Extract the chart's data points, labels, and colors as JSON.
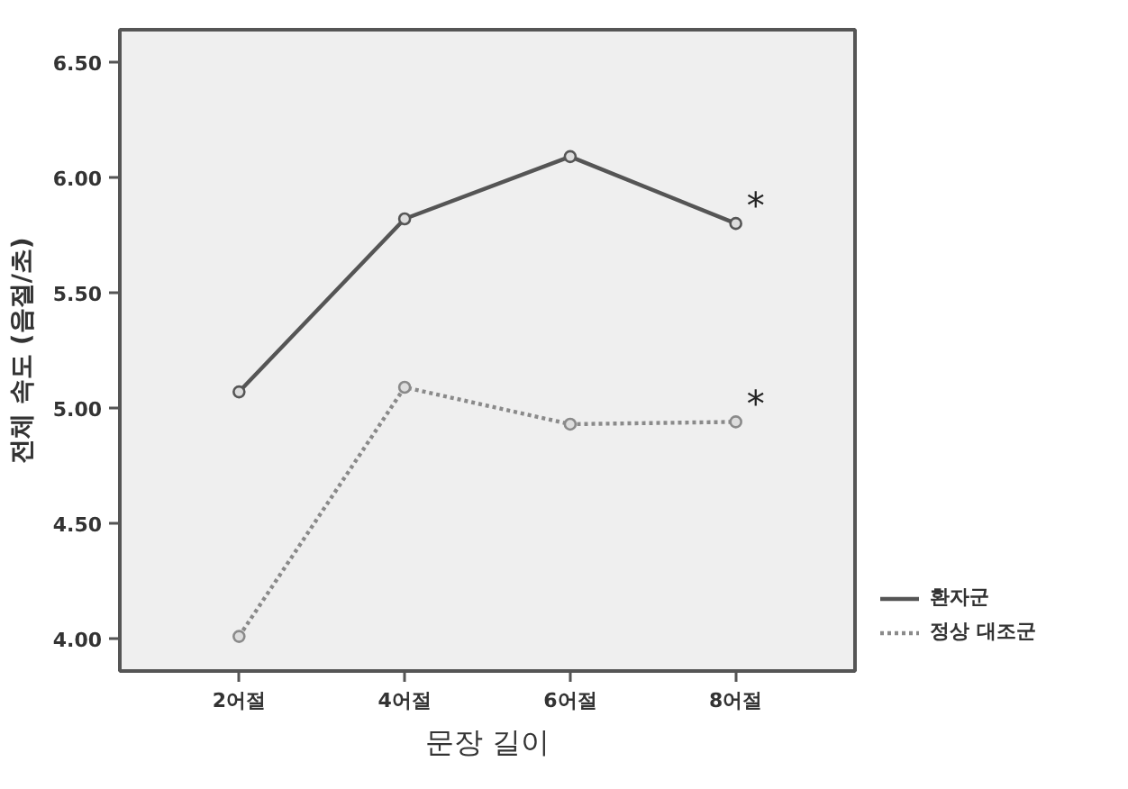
{
  "chart_data": {
    "type": "line",
    "xlabel": "문장 길이",
    "ylabel": "전체 속도 (음절/초)",
    "categories": [
      "2어절",
      "4어절",
      "6어절",
      "8어절"
    ],
    "series": [
      {
        "name": "환자군",
        "color": "#555555",
        "line_style": "solid",
        "values": [
          5.07,
          5.82,
          6.09,
          5.8
        ]
      },
      {
        "name": "정상 대조군",
        "color": "#8a8a8a",
        "line_style": "dotted",
        "values": [
          4.01,
          5.09,
          4.93,
          4.94
        ]
      }
    ],
    "ylim": [
      3.86,
      6.64
    ],
    "yticks": [
      {
        "value": 4.0,
        "label": "4.00"
      },
      {
        "value": 4.5,
        "label": "4.50"
      },
      {
        "value": 5.0,
        "label": "5.00"
      },
      {
        "value": 5.5,
        "label": "5.50"
      },
      {
        "value": 6.0,
        "label": "6.00"
      },
      {
        "value": 6.5,
        "label": "6.50"
      }
    ],
    "marker": "circle",
    "grid": false,
    "legend": "bottom right",
    "annotations": [
      {
        "text": "*",
        "x": "8어절",
        "y": 5.8
      },
      {
        "text": "*",
        "x": "8어절",
        "y": 4.94
      }
    ]
  }
}
